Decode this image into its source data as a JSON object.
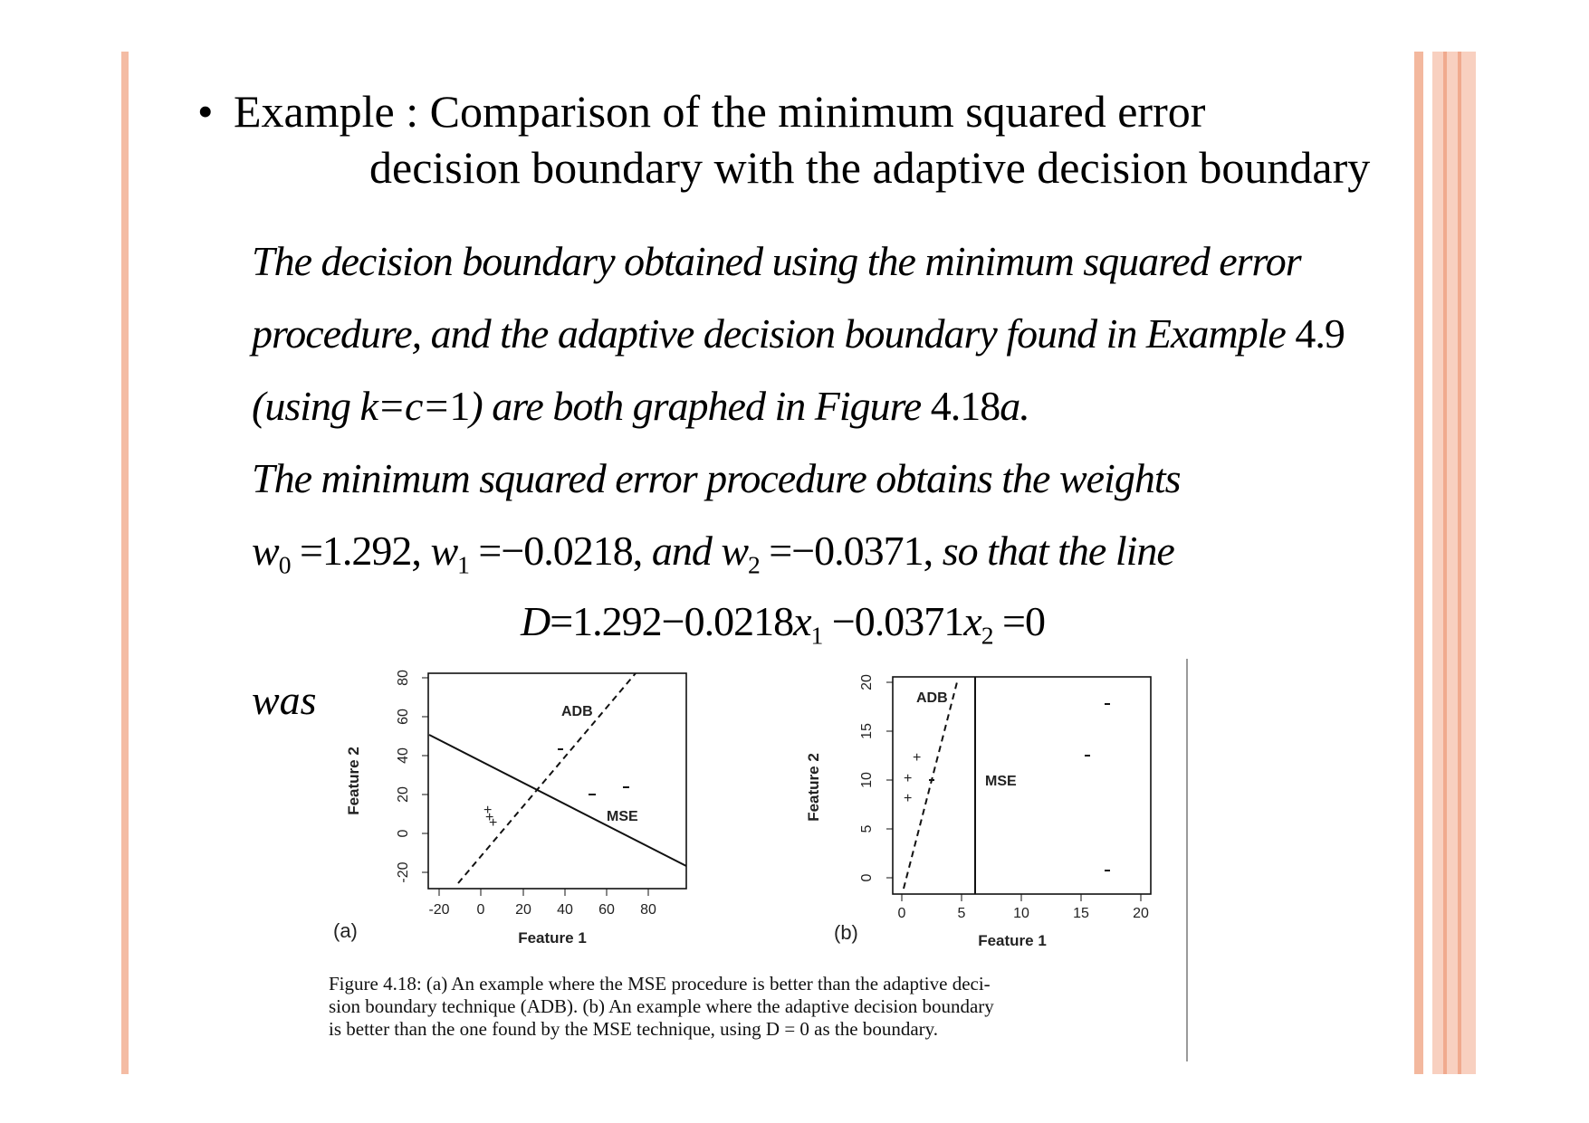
{
  "slide": {
    "bullet": "•",
    "heading_line1": "Example : Comparison of the minimum squared error",
    "heading_line2": "decision boundary with the adaptive decision boundary"
  },
  "paragraph": {
    "line1": "The decision boundary obtained using the minimum squared error",
    "line2_a": "procedure, and the adaptive decision boundary  found in Example ",
    "line2_b": "4.9",
    "line3_a": "(using k=c=",
    "line3_b": "1",
    "line3_c": ") are both graphed in Figure ",
    "line3_d": "4.18",
    "line3_e": "a.",
    "line4": "The minimum squared error  procedure obtains the weights",
    "line5_w0": "w",
    "line5_s0": "0",
    "line5_v0": " =1.292,  ",
    "line5_w1": "w",
    "line5_s1": "1",
    "line5_v1": " =−0.0218,  ",
    "line5_and": "and ",
    "line5_w2": "w",
    "line5_s2": "2",
    "line5_v2": " =−0.0371,",
    "line5_tail": " so that the line",
    "equation_a": "D",
    "equation_b": "=1.292−0.0218",
    "equation_x1": "x",
    "equation_s1": "1",
    "equation_c": " −0.0371",
    "equation_x2": "x",
    "equation_s2": "2",
    "equation_d": " =0",
    "was": "was"
  },
  "figure": {
    "panel_a": {
      "label": "(a)",
      "xlabel": "Feature 1",
      "ylabel": "Feature 2",
      "xticks": [
        "-20",
        "0",
        "20",
        "40",
        "60",
        "80"
      ],
      "yticks": [
        "-20",
        "0",
        "20",
        "40",
        "60",
        "80"
      ],
      "line_labels": [
        "ADB",
        "MSE"
      ]
    },
    "panel_b": {
      "label": "(b)",
      "xlabel": "Feature 1",
      "ylabel": "Feature 2",
      "xticks": [
        "0",
        "5",
        "10",
        "15",
        "20"
      ],
      "yticks": [
        "0",
        "5",
        "10",
        "15",
        "20"
      ],
      "line_labels": [
        "ADB",
        "MSE"
      ]
    },
    "caption_line1": "Figure 4.18: (a) An example where the MSE procedure is better than the adaptive deci-",
    "caption_line2": "sion boundary technique (ADB). (b) An example where the adaptive decision boundary",
    "caption_line3": "is better than the one found by the MSE technique, using D = 0 as the boundary."
  }
}
